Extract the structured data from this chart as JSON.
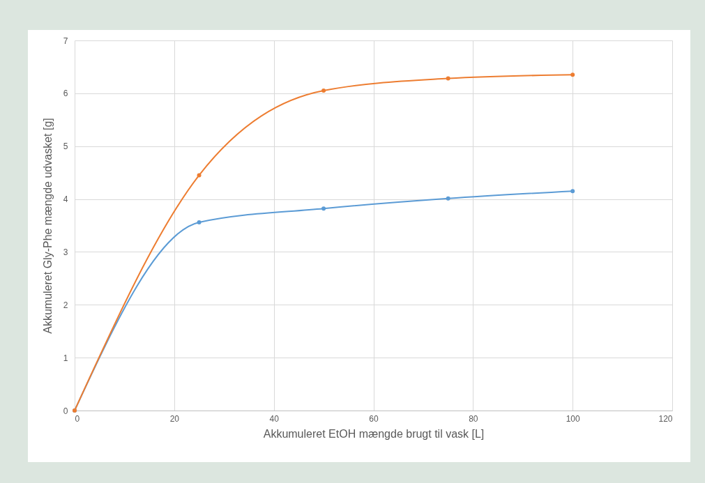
{
  "chart_data": {
    "type": "line",
    "xlabel": "Akkumuleret EtOH mængde brugt til vask [L]",
    "ylabel": "Akkumuleret Gly-Phe mængde udvasket [g]",
    "x": [
      0,
      25,
      50,
      75,
      100
    ],
    "series": [
      {
        "color": "#5b9bd5",
        "values": [
          0,
          3.56,
          3.82,
          4.01,
          4.15
        ]
      },
      {
        "color": "#ed7d31",
        "values": [
          0,
          4.45,
          6.05,
          6.28,
          6.35
        ]
      }
    ],
    "xlim": [
      0,
      120
    ],
    "xticks": [
      0,
      20,
      40,
      60,
      80,
      100,
      120
    ],
    "ylim": [
      0,
      7
    ],
    "yticks": [
      0,
      1,
      2,
      3,
      4,
      5,
      6,
      7
    ],
    "grid": true,
    "marker": "circle",
    "line_style": "solid"
  }
}
